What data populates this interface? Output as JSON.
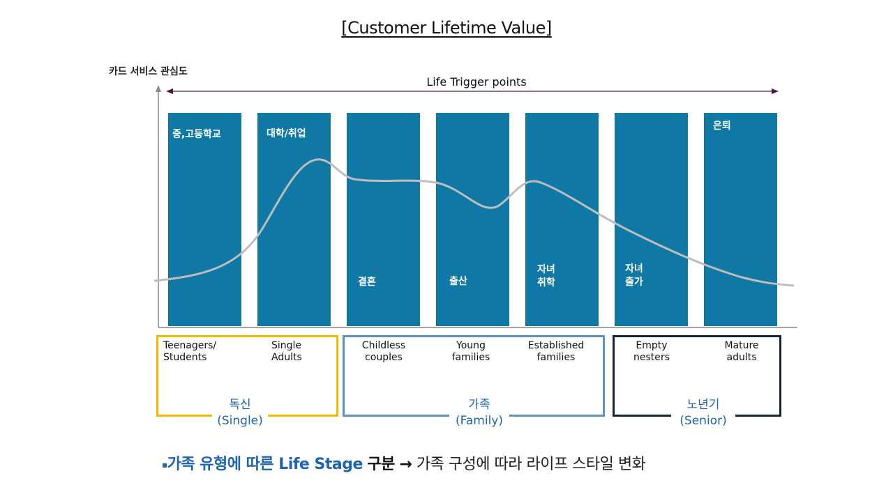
{
  "title": "[Customer Lifetime Value]",
  "y_axis_label": "카드 서비스 관심도",
  "trigger_label": "Life Trigger points",
  "stages": [
    {
      "lines": [
        "중,고등학교"
      ]
    },
    {
      "lines": [
        "대학/취업"
      ]
    },
    {
      "lines": [
        "결혼"
      ]
    },
    {
      "lines": [
        "출산"
      ]
    },
    {
      "lines": [
        "자녀",
        "취학"
      ]
    },
    {
      "lines": [
        "자녀",
        "출가"
      ]
    },
    {
      "lines": [
        "은퇴"
      ]
    }
  ],
  "segments": [
    {
      "lines": [
        "Teenagers/",
        "Students"
      ]
    },
    {
      "lines": [
        "Single",
        "Adults"
      ]
    },
    {
      "lines": [
        "Childless",
        "couples"
      ]
    },
    {
      "lines": [
        "Young",
        "families"
      ]
    },
    {
      "lines": [
        "Established",
        "families"
      ]
    },
    {
      "lines": [
        "Empty",
        "nesters"
      ]
    },
    {
      "lines": [
        "Mature",
        "adults"
      ]
    }
  ],
  "groups": [
    {
      "name": "독신",
      "sub": "(Single)",
      "color": "#f5b800"
    },
    {
      "name": "가족",
      "sub": "(Family)",
      "color": "#5b93c0"
    },
    {
      "name": "노년기",
      "sub": "(Senior)",
      "color": "#152535"
    }
  ],
  "bottom": {
    "marker": "▪",
    "bold_part": "가족 유형에 따른 Life Stage",
    "dark_part": "구분",
    "arrow": "→",
    "rest": "가족 구성에 따라 라이프 스타일 변화"
  },
  "colors": {
    "column": "#0f78a5",
    "curve": "#bdbdbd",
    "trigger_arrow": "#4a1942",
    "axis": "#888888"
  }
}
